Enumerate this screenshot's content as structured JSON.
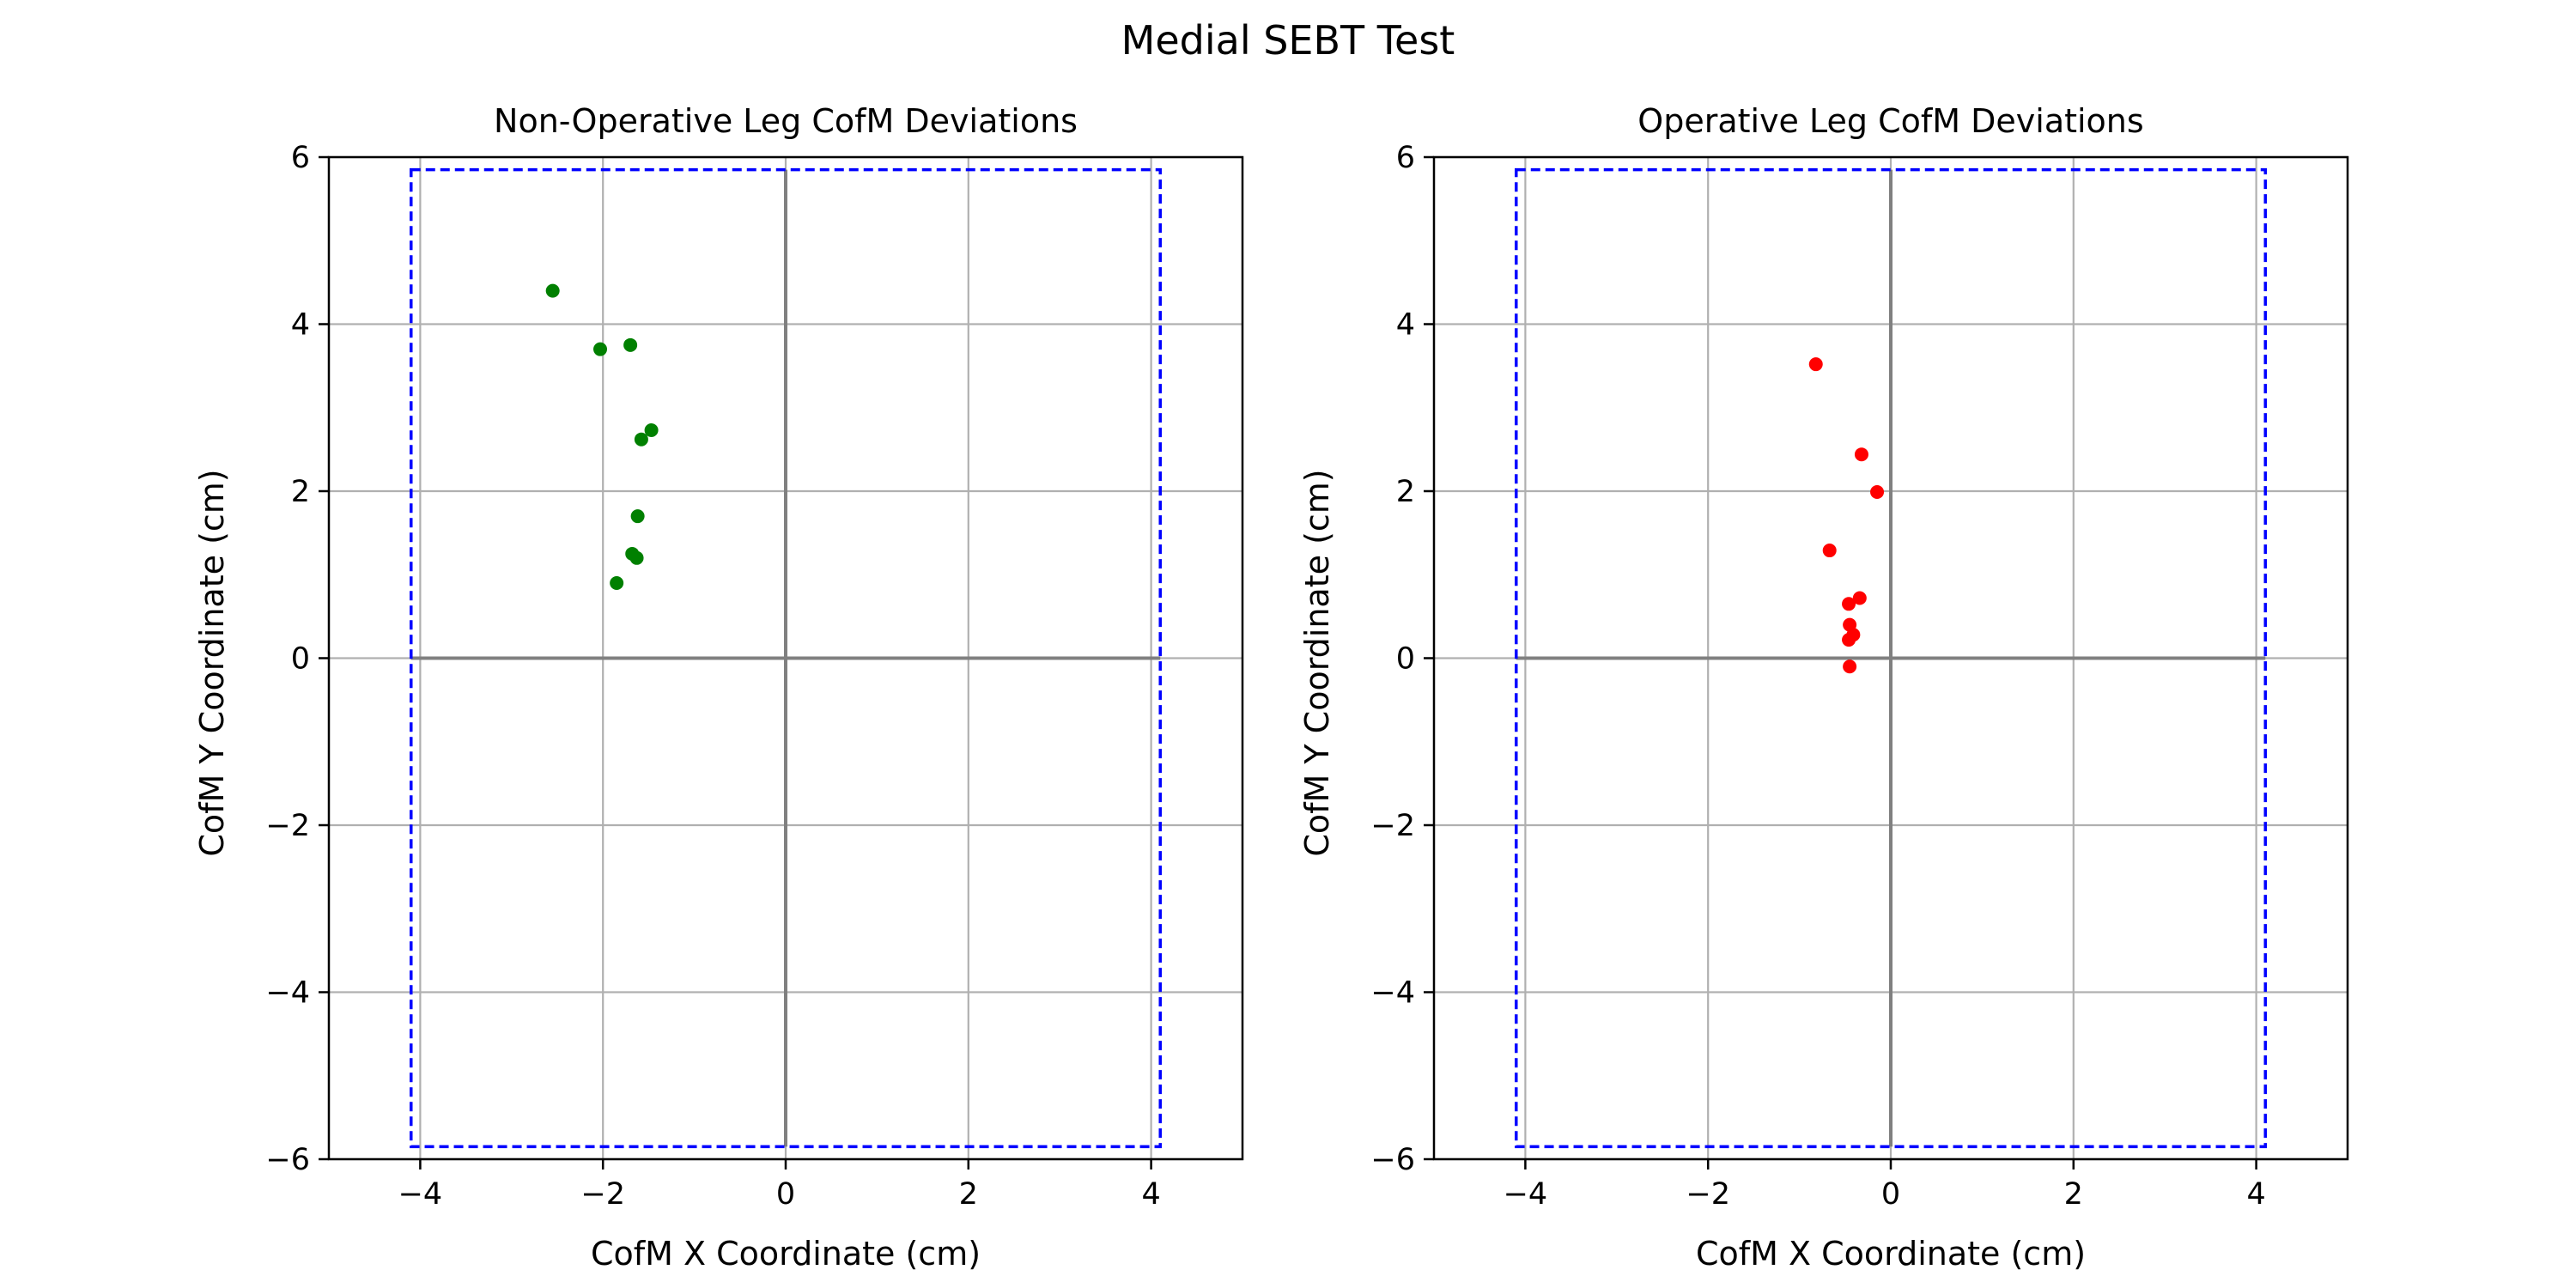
{
  "figure": {
    "title": "Medial SEBT Test"
  },
  "chart_data": [
    {
      "type": "scatter",
      "title": "Non-Operative Leg CofM Deviations",
      "xlabel": "CofM X Coordinate (cm)",
      "ylabel": "CofM Y Coordinate (cm)",
      "xlim": [
        -5,
        5
      ],
      "ylim": [
        -6,
        6
      ],
      "xticks": [
        -4,
        -2,
        0,
        2,
        4
      ],
      "yticks": [
        -6,
        -4,
        -2,
        0,
        2,
        4,
        6
      ],
      "xtick_labels": [
        "−4",
        "−2",
        "0",
        "2",
        "4"
      ],
      "ytick_labels": [
        "−6",
        "−4",
        "−2",
        "0",
        "2",
        "4",
        "6"
      ],
      "grid": true,
      "boundary": {
        "x": [
          -4.1,
          4.1
        ],
        "y": [
          -5.85,
          5.85
        ],
        "color": "#0000ff",
        "style": "dashed"
      },
      "point_color": "#008000",
      "series": [
        {
          "x": [
            -2.55,
            -2.03,
            -1.7,
            -1.47,
            -1.58,
            -1.62,
            -1.68,
            -1.63,
            -1.85
          ],
          "y": [
            4.4,
            3.7,
            3.75,
            2.73,
            2.62,
            1.7,
            1.25,
            1.2,
            0.9
          ]
        }
      ]
    },
    {
      "type": "scatter",
      "title": "Operative Leg CofM Deviations",
      "xlabel": "CofM X Coordinate (cm)",
      "ylabel": "CofM Y Coordinate (cm)",
      "xlim": [
        -5,
        5
      ],
      "ylim": [
        -6,
        6
      ],
      "xticks": [
        -4,
        -2,
        0,
        2,
        4
      ],
      "yticks": [
        -6,
        -4,
        -2,
        0,
        2,
        4,
        6
      ],
      "xtick_labels": [
        "−4",
        "−2",
        "0",
        "2",
        "4"
      ],
      "ytick_labels": [
        "−6",
        "−4",
        "−2",
        "0",
        "2",
        "4",
        "6"
      ],
      "grid": true,
      "boundary": {
        "x": [
          -4.1,
          4.1
        ],
        "y": [
          -5.85,
          5.85
        ],
        "color": "#0000ff",
        "style": "dashed"
      },
      "point_color": "#ff0000",
      "series": [
        {
          "x": [
            -0.82,
            -0.32,
            -0.15,
            -0.67,
            -0.34,
            -0.46,
            -0.45,
            -0.41,
            -0.46,
            -0.45
          ],
          "y": [
            3.52,
            2.44,
            1.99,
            1.29,
            0.72,
            0.65,
            0.4,
            0.28,
            0.22,
            -0.1
          ]
        }
      ]
    }
  ]
}
